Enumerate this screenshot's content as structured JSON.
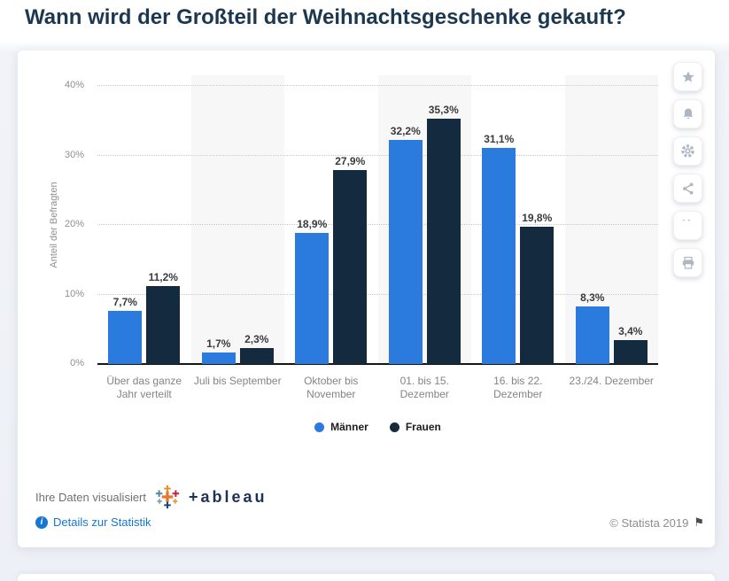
{
  "page": {
    "title": "Wann wird der Großteil der Weihnachtsgeschenke gekauft?"
  },
  "chart_data": {
    "type": "bar",
    "title": "Wann wird der Großteil der Weihnachtsgeschenke gekauft?",
    "categories": [
      "Über das ganze Jahr verteilt",
      "Juli bis September",
      "Oktober bis November",
      "01. bis 15. Dezember",
      "16. bis 22. Dezember",
      "23./24. Dezember"
    ],
    "series": [
      {
        "name": "Männer",
        "color": "#2b7bde",
        "values": [
          7.7,
          1.7,
          18.9,
          32.2,
          31.1,
          8.3
        ],
        "labels": [
          "7,7%",
          "1,7%",
          "18,9%",
          "32,2%",
          "31,1%",
          "8,3%"
        ]
      },
      {
        "name": "Frauen",
        "color": "#132a3f",
        "values": [
          11.2,
          2.3,
          27.9,
          35.3,
          19.8,
          3.4
        ],
        "labels": [
          "11,2%",
          "2,3%",
          "27,9%",
          "35,3%",
          "19,8%",
          "3,4%"
        ]
      }
    ],
    "xlabel": "",
    "ylabel": "Anteil der Befragten",
    "yticks": [
      "0%",
      "10%",
      "20%",
      "30%",
      "40%"
    ],
    "ylim": [
      0,
      40
    ],
    "grid": "horizontal dotted",
    "band_fill_alternate": "#f7f7f7",
    "legend_position": "bottom center"
  },
  "toolbar": {
    "buttons": [
      "favorite-star",
      "notifications-bell",
      "settings-gear",
      "share",
      "cite-quote",
      "print"
    ]
  },
  "footer": {
    "visualized_by": "Ihre Daten visualisiert",
    "tableau_wordmark": "+ableau",
    "details_link": "Details zur Statistik",
    "info_badge": "i",
    "copyright": "© Statista 2019",
    "flag_glyph": "⚑"
  },
  "colors": {
    "title": "#1c3850",
    "link": "#1577d1",
    "maenner_bar": "#2b7bde",
    "frauen_bar": "#132a3f"
  }
}
